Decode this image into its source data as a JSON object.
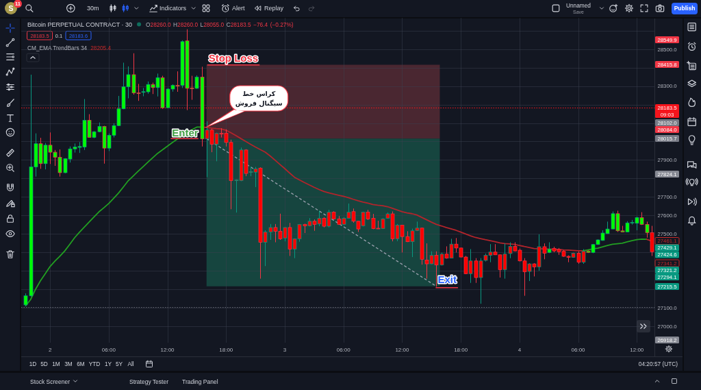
{
  "chart_data": {
    "type": "candlestick",
    "title": "Bitcoin PERPETUAL CONTRACT · 30",
    "subtitle": "O28260.0 H28260.0 L28055.0 C28183.5 −76.4 (−0.27%)",
    "categories": [
      null,
      null,
      null,
      null,
      null,
      "2",
      null,
      null,
      null,
      null,
      null,
      null,
      null,
      null,
      null,
      null,
      null,
      "06:00",
      null,
      null,
      null,
      null,
      null,
      null,
      null,
      null,
      null,
      null,
      null,
      "12:00",
      null,
      null,
      null,
      null,
      null,
      null,
      null,
      null,
      null,
      null,
      null,
      "18:00",
      null,
      null,
      null,
      null,
      null,
      null,
      null,
      null,
      null,
      null,
      null,
      "3",
      null,
      null,
      null,
      null,
      null,
      null,
      null,
      null,
      null,
      null,
      null,
      "06:00",
      null,
      null,
      null,
      null,
      null,
      null,
      null,
      null,
      null,
      null,
      null,
      "12:00",
      null,
      null,
      null,
      null,
      null,
      null,
      null,
      null,
      null,
      null,
      null,
      "18:00",
      null,
      null,
      null,
      null,
      null,
      null,
      null,
      null,
      null,
      null,
      null,
      "4",
      null,
      null,
      null,
      null,
      null,
      null,
      null,
      null,
      null,
      null,
      null,
      "06:00",
      null,
      null,
      null,
      null,
      null,
      null,
      null,
      null,
      null,
      null,
      null,
      "12:00",
      null,
      null,
      null
    ],
    "ohlc": [
      [
        27115,
        27177,
        27108,
        27164
      ],
      [
        27164,
        28362,
        27160,
        27862
      ],
      [
        27862,
        28044,
        27810,
        27988
      ],
      [
        27988,
        28020,
        27852,
        27880
      ],
      [
        27880,
        27992,
        27849,
        27980
      ],
      [
        27980,
        28049,
        27878,
        27942
      ],
      [
        27942,
        27954,
        27868,
        27915
      ],
      [
        27915,
        27957,
        27810,
        27831
      ],
      [
        27831,
        27910,
        27828,
        27907
      ],
      [
        27905,
        27973,
        27886,
        27960
      ],
      [
        27960,
        27989,
        27940,
        27970
      ],
      [
        27968,
        27997,
        27938,
        27973
      ],
      [
        27970,
        28230,
        27954,
        28115
      ],
      [
        28115,
        28148,
        28022,
        28022
      ],
      [
        28022,
        28056,
        28018,
        28053
      ],
      [
        28053,
        28103,
        28050,
        28082
      ],
      [
        28082,
        28085,
        27880,
        27964
      ],
      [
        27964,
        28044,
        27948,
        28034
      ],
      [
        28034,
        28099,
        28022,
        28086
      ],
      [
        28086,
        28247,
        28084,
        28177
      ],
      [
        28177,
        28427,
        28175,
        28296
      ],
      [
        28296,
        28407,
        28234,
        28362
      ],
      [
        28362,
        28478,
        28254,
        28263
      ],
      [
        28263,
        28312,
        28220,
        28261
      ],
      [
        28266,
        28290,
        28245,
        28270
      ],
      [
        28269,
        28325,
        28259,
        28309
      ],
      [
        28309,
        28319,
        28257,
        28292
      ],
      [
        28292,
        28368,
        28244,
        28346
      ],
      [
        28346,
        28356,
        28177,
        28183
      ],
      [
        28183,
        28290,
        28180,
        28284
      ],
      [
        28284,
        28310,
        28270,
        28304
      ],
      [
        28304,
        28380,
        28269,
        28300
      ],
      [
        28304,
        28548,
        28290,
        28541
      ],
      [
        28545,
        28608,
        28170,
        28288
      ],
      [
        28290,
        28356,
        28226,
        28287
      ],
      [
        28288,
        28358,
        28285,
        28349
      ],
      [
        28349,
        28405,
        27973,
        28014
      ],
      [
        28014,
        28109,
        27807,
        28062
      ],
      [
        28062,
        28070,
        27942,
        27985
      ],
      [
        27985,
        28048,
        27893,
        28044
      ],
      [
        28044,
        28072,
        28022,
        28040
      ],
      [
        28044,
        28066,
        27973,
        27995
      ],
      [
        27995,
        28010,
        27633,
        27788
      ],
      [
        27788,
        27795,
        27615,
        27792
      ],
      [
        27788,
        27967,
        27785,
        27954
      ],
      [
        27954,
        27958,
        27812,
        27827
      ],
      [
        27833,
        27864,
        27812,
        27837
      ],
      [
        27834,
        27862,
        27753,
        27852
      ],
      [
        27856,
        27860,
        27257,
        27454
      ],
      [
        27454,
        27519,
        27325,
        27510
      ],
      [
        27510,
        27553,
        27467,
        27534
      ],
      [
        27534,
        27553,
        27454,
        27514
      ],
      [
        27514,
        27609,
        27467,
        27473
      ],
      [
        27477,
        27536,
        27459,
        27534
      ],
      [
        27534,
        27559,
        27380,
        27417
      ],
      [
        27417,
        27475,
        27368,
        27473
      ],
      [
        27473,
        27553,
        27457,
        27551
      ],
      [
        27551,
        27555,
        27504,
        27543
      ],
      [
        27543,
        27585,
        27540,
        27568
      ],
      [
        27568,
        27578,
        27516,
        27551
      ],
      [
        27553,
        27625,
        27541,
        27584
      ],
      [
        27584,
        27590,
        27535,
        27541
      ],
      [
        27541,
        27630,
        27534,
        27617
      ],
      [
        27617,
        27622,
        27578,
        27580
      ],
      [
        27581,
        27596,
        27548,
        27551
      ],
      [
        27551,
        27590,
        27548,
        27584
      ],
      [
        27584,
        27664,
        27582,
        27617
      ],
      [
        27620,
        27637,
        27560,
        27568
      ],
      [
        27568,
        27570,
        27510,
        27526
      ],
      [
        27543,
        27620,
        27540,
        27617
      ],
      [
        27617,
        27630,
        27575,
        27580
      ],
      [
        27584,
        27608,
        27525,
        27528
      ],
      [
        27530,
        27571,
        27526,
        27528
      ],
      [
        27528,
        27585,
        27526,
        27580
      ],
      [
        27584,
        27615,
        27582,
        27608
      ],
      [
        27608,
        27621,
        27459,
        27473
      ],
      [
        27473,
        27553,
        27460,
        27547
      ],
      [
        27547,
        27547,
        27399,
        27485
      ],
      [
        27485,
        27514,
        27455,
        27457
      ],
      [
        27457,
        27528,
        27374,
        27516
      ],
      [
        27518,
        27566,
        27515,
        27531
      ],
      [
        27531,
        27533,
        27333,
        27362
      ],
      [
        27358,
        27448,
        27257,
        27337
      ],
      [
        27337,
        27405,
        27335,
        27383
      ],
      [
        27383,
        27405,
        27213,
        27331
      ],
      [
        27331,
        27398,
        27328,
        27390
      ],
      [
        27390,
        27432,
        27365,
        27368
      ],
      [
        27368,
        27473,
        27367,
        27444
      ],
      [
        27444,
        27477,
        27399,
        27423
      ],
      [
        27423,
        27425,
        27372,
        27374
      ],
      [
        27374,
        27380,
        27282,
        27284
      ],
      [
        27284,
        27417,
        27234,
        27353
      ],
      [
        27353,
        27368,
        27234,
        27263
      ],
      [
        27263,
        27368,
        27121,
        27353
      ],
      [
        27356,
        27393,
        27350,
        27383
      ],
      [
        27383,
        27444,
        27346,
        27401
      ],
      [
        27401,
        27444,
        27385,
        27386
      ],
      [
        27386,
        27388,
        27263,
        27306
      ],
      [
        27306,
        27448,
        27257,
        27390
      ],
      [
        27393,
        27454,
        27368,
        27432
      ],
      [
        27432,
        27454,
        27405,
        27407
      ],
      [
        27411,
        27420,
        27350,
        27353
      ],
      [
        27353,
        27368,
        27164,
        27294
      ],
      [
        27296,
        27341,
        27244,
        27337
      ],
      [
        27337,
        27341,
        27269,
        27321
      ],
      [
        27321,
        27497,
        27300,
        27430
      ],
      [
        27430,
        27448,
        27362,
        27395
      ],
      [
        27399,
        27454,
        27395,
        27417
      ],
      [
        27420,
        27430,
        27400,
        27407
      ],
      [
        27415,
        27423,
        27386,
        27403
      ],
      [
        27405,
        27412,
        27375,
        27378
      ],
      [
        27378,
        27383,
        27346,
        27372
      ],
      [
        27372,
        27398,
        27370,
        27395
      ],
      [
        27395,
        27405,
        27337,
        27346
      ],
      [
        27346,
        27417,
        27337,
        27405
      ],
      [
        27407,
        27410,
        27396,
        27399
      ],
      [
        27399,
        27445,
        27395,
        27442
      ],
      [
        27442,
        27470,
        27440,
        27467
      ],
      [
        27464,
        27519,
        27462,
        27504
      ],
      [
        27501,
        27566,
        27500,
        27526
      ],
      [
        27526,
        27621,
        27525,
        27609
      ],
      [
        27609,
        27625,
        27510,
        27516
      ],
      [
        27516,
        27543,
        27508,
        27510
      ],
      [
        27510,
        27568,
        27508,
        27559
      ],
      [
        27559,
        27575,
        27550,
        27562
      ],
      [
        27557,
        27593,
        27519,
        27588
      ],
      [
        27588,
        27617,
        27548,
        27551
      ],
      [
        27551,
        27566,
        27479,
        27506
      ],
      [
        27506,
        27543,
        27380,
        27403
      ]
    ],
    "colors": [
      "#00ff00",
      "#00ff00",
      "#00ff00",
      "#00ff00",
      "#00ff00",
      "#00ff00",
      "#00ff00",
      "#00ff00",
      "#00ff00",
      "#00ff00",
      "#00ff00",
      "#00ff00",
      "#00ff00",
      "#00ff00",
      "#00ff00",
      "#00ff00",
      "#00ff00",
      "#00ff00",
      "#00ff00",
      "#00ff00",
      "#00ff00",
      "#00ff00",
      "#00ff00",
      "#00ff00",
      "#00ff00",
      "#00ff00",
      "#00ff00",
      "#00ff00",
      "#00ff00",
      "#00ff00",
      "#00ff00",
      "#00ff00",
      "#00ff00",
      "#00ff00",
      "#00ff00",
      "#00ff00",
      "#00ff00",
      "#ff0000",
      "#ff0000",
      "#ff0000",
      "#ff0000",
      "#ff0000",
      "#ff0000",
      "#ff0000",
      "#ff0000",
      "#ff0000",
      "#ff0000",
      "#ff0000",
      "#ff0000",
      "#ff0000",
      "#ff0000",
      "#ff0000",
      "#ff0000",
      "#ff0000",
      "#ff0000",
      "#ff0000",
      "#ff0000",
      "#ff0000",
      "#ff0000",
      "#ff0000",
      "#ff0000",
      "#ff0000",
      "#ff0000",
      "#ff0000",
      "#ff0000",
      "#ff0000",
      "#ff0000",
      "#ff0000",
      "#ff0000",
      "#ff0000",
      "#ff0000",
      "#ff0000",
      "#ff0000",
      "#ff0000",
      "#ff0000",
      "#ff0000",
      "#ff0000",
      "#ff0000",
      "#ff0000",
      "#ff0000",
      "#ff0000",
      "#ff0000",
      "#ff0000",
      "#ff0000",
      "#ff0000",
      "#ff0000",
      "#ff0000",
      "#ff0000",
      "#ff0000",
      "#ff0000",
      "#ff0000",
      "#ff0000",
      "#ff0000",
      "#ff0000",
      "#ff0000",
      "#ff0000",
      "#ff0000",
      "#ff0000",
      "#ff0000",
      "#ff0000",
      "#ff0000",
      "#ff0000",
      "#ff0000",
      "#ff0000",
      "#ff0000",
      "#ff0000",
      "#ff0000",
      "#00ff00",
      "#ff0000",
      "#ff0000",
      "#ff0000",
      "#ff0000",
      "#ff0000",
      "#ff0000",
      "#ff0000",
      "#00ff00",
      "#00ff00",
      "#00ff00",
      "#00ff00",
      "#00ff00",
      "#00ff00",
      "#00ff00",
      "#00ff00",
      "#00ff00",
      "#00ff00",
      "#00ff00",
      "#00ff00",
      "#00ff00",
      "#ff0000"
    ],
    "series": [
      {
        "type": "line",
        "color": "#22a022",
        "values": [
          27110,
          27143,
          27198,
          27244,
          27283,
          27323,
          27352,
          27378,
          27407,
          27442,
          27478,
          27508,
          27536,
          27564,
          27592,
          27619,
          27641,
          27664,
          27692,
          27721,
          27754,
          27788,
          27813,
          27839,
          27863,
          27888,
          27912,
          27936,
          27955,
          27975,
          27994,
          28013,
          28030,
          28047,
          28064,
          28078,
          28078,
          null,
          null,
          null,
          null,
          null,
          null,
          null,
          null,
          null,
          null,
          null,
          null,
          null,
          null,
          null,
          null,
          null,
          null,
          null,
          null,
          null,
          null,
          null,
          null,
          null,
          null,
          null,
          null,
          null,
          null,
          null,
          null,
          null,
          null,
          null,
          null,
          null,
          null,
          null,
          null,
          null,
          null,
          null,
          null,
          null,
          null,
          null,
          null,
          null,
          null,
          null,
          null,
          null,
          null,
          null,
          null,
          null,
          null,
          null,
          null,
          null,
          null,
          null,
          null,
          null,
          null,
          null,
          null,
          null,
          null,
          null,
          null,
          null,
          null,
          null,
          null,
          null,
          null,
          null,
          null,
          null,
          null,
          null,
          null,
          null,
          null,
          null,
          null,
          null,
          null,
          null,
          null
        ]
      },
      {
        "type": "line",
        "color": "#b3242b",
        "values": [
          null,
          null,
          null,
          null,
          null,
          null,
          null,
          null,
          null,
          null,
          null,
          null,
          null,
          null,
          null,
          null,
          null,
          null,
          null,
          null,
          null,
          null,
          null,
          null,
          null,
          null,
          null,
          null,
          null,
          null,
          null,
          null,
          null,
          null,
          null,
          null,
          28078,
          28076,
          28073,
          28070,
          28068,
          28061,
          28047,
          28032,
          28016,
          28001,
          27985,
          27970,
          27956,
          27942,
          27922,
          27899,
          27876,
          27853,
          27829,
          27806,
          27792,
          27778,
          27765,
          27752,
          27740,
          27729,
          27722,
          27715,
          27709,
          27703,
          27696,
          27687,
          27679,
          27672,
          27666,
          27659,
          27655,
          27652,
          27647,
          27638,
          27629,
          27620,
          27613,
          27609,
          27602,
          27589,
          27576,
          27563,
          27551,
          27543,
          27534,
          27527,
          27519,
          27509,
          27499,
          27489,
          27480,
          27474,
          27468,
          27463,
          27457,
          27451,
          27447,
          27445,
          27442,
          27437,
          27431,
          27426,
          27420,
          27419,
          27418,
          27417,
          27416,
          27415,
          27413,
          27412,
          27410,
          27408,
          27408,
          null,
          null,
          null,
          null,
          null,
          null,
          null,
          null,
          null,
          null,
          null,
          null,
          null,
          null
        ]
      },
      {
        "type": "line",
        "color": "#22a022",
        "values": [
          null,
          null,
          null,
          null,
          null,
          null,
          null,
          null,
          null,
          null,
          null,
          null,
          null,
          null,
          null,
          null,
          null,
          null,
          null,
          null,
          null,
          null,
          null,
          null,
          null,
          null,
          null,
          null,
          null,
          null,
          null,
          null,
          null,
          null,
          null,
          null,
          null,
          null,
          null,
          null,
          null,
          null,
          null,
          null,
          null,
          null,
          null,
          null,
          null,
          null,
          null,
          null,
          null,
          null,
          null,
          null,
          null,
          null,
          null,
          null,
          null,
          null,
          null,
          null,
          null,
          null,
          null,
          null,
          null,
          null,
          null,
          null,
          null,
          null,
          null,
          null,
          null,
          null,
          null,
          null,
          null,
          null,
          null,
          null,
          null,
          null,
          null,
          null,
          null,
          null,
          null,
          null,
          null,
          null,
          null,
          null,
          null,
          null,
          null,
          null,
          null,
          null,
          null,
          null,
          null,
          null,
          null,
          null,
          null,
          null,
          null,
          null,
          null,
          null,
          27408,
          27413,
          27418,
          27422,
          27429,
          27437,
          27443,
          27446,
          27449,
          27456,
          27463,
          27468,
          27471,
          27470,
          null
        ]
      },
      {
        "type": "line",
        "color": "#b3242b",
        "values": [
          null,
          null,
          null,
          null,
          null,
          null,
          null,
          null,
          null,
          null,
          null,
          null,
          null,
          null,
          null,
          null,
          null,
          null,
          null,
          null,
          null,
          null,
          null,
          null,
          null,
          null,
          null,
          null,
          null,
          null,
          null,
          null,
          null,
          null,
          null,
          null,
          null,
          null,
          null,
          null,
          null,
          null,
          null,
          null,
          null,
          null,
          null,
          null,
          null,
          null,
          null,
          null,
          null,
          null,
          null,
          null,
          null,
          null,
          null,
          null,
          null,
          null,
          null,
          null,
          null,
          null,
          null,
          null,
          null,
          null,
          null,
          null,
          null,
          null,
          null,
          null,
          null,
          null,
          null,
          null,
          null,
          null,
          null,
          null,
          null,
          null,
          null,
          null,
          null,
          null,
          null,
          null,
          null,
          null,
          null,
          null,
          null,
          null,
          null,
          null,
          null,
          null,
          null,
          null,
          null,
          null,
          null,
          null,
          null,
          null,
          null,
          null,
          null,
          null,
          null,
          null,
          null,
          null,
          null,
          null,
          null,
          null,
          null,
          null,
          null,
          null,
          null,
          27470,
          27461
        ]
      }
    ],
    "ylim": [
      26910,
      28670
    ],
    "yticks": [
      {
        "value": 27000,
        "label": "27000.0"
      },
      {
        "value": 27100,
        "label": "27100.0"
      },
      {
        "value": 27200,
        "label": null
      },
      {
        "value": 27300,
        "label": null
      },
      {
        "value": 27400,
        "label": null
      },
      {
        "value": 27500,
        "label": "27500.0"
      },
      {
        "value": 27600,
        "label": "27600.0"
      },
      {
        "value": 27700,
        "label": "27700.0"
      },
      {
        "value": 27800,
        "label": null
      },
      {
        "value": 27900,
        "label": "27900.0"
      },
      {
        "value": 28000,
        "label": null
      },
      {
        "value": 28100,
        "label": null
      },
      {
        "value": 28200,
        "label": null
      },
      {
        "value": 28300,
        "label": "28300.0"
      },
      {
        "value": 28400,
        "label": null
      },
      {
        "value": 28500,
        "label": "28500.0"
      },
      {
        "value": 28600,
        "label": null
      }
    ],
    "grid": true,
    "bands": [
      {
        "axis": "y",
        "from": 28015.7,
        "to": 28415.8,
        "color": "#4a2731"
      },
      {
        "axis": "y",
        "from": 27215.5,
        "to": 28015.7,
        "color": "#16453f"
      }
    ],
    "ref_lines": [
      {
        "axis": "y",
        "value": 28183.5,
        "label": "28183.5\n09:03",
        "color": "#f5141c",
        "line_style": "dotted"
      },
      {
        "axis": "y",
        "value": 27102,
        "color": "#62656f",
        "line_style": "dotted"
      }
    ],
    "annotations": [
      "S",
      "11",
      "30m",
      "Indicators",
      "Alert",
      "Replay",
      "Unnamed",
      "Save",
      "Publish",
      "28183.5",
      "0.1",
      "28183.6",
      "CM_EMA TrendBars 34",
      "28205.4",
      "28549.9",
      "28415.8",
      "28102.0",
      "28084.0",
      "28015.7",
      "27824.1",
      "27461.1",
      "27429.1",
      "27424.6",
      "27341.2",
      "27321.2",
      "27294.1",
      "27215.5",
      "26918.2",
      {
        "text": "Stop Loss",
        "y": 28415.8
      },
      "کراس خط\nسیگنال فروش",
      "Enter",
      "Exit",
      "1D",
      "5D",
      "1M",
      "3M",
      "6M",
      "YTD",
      "1Y",
      "5Y",
      "All",
      "04:20:57 (UTC)",
      "Stock Screener",
      "Strategy Tester",
      "Trading Panel"
    ]
  }
}
